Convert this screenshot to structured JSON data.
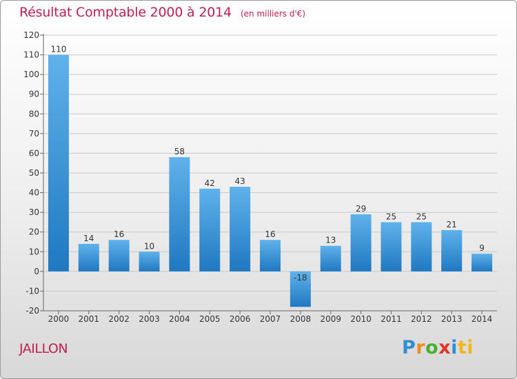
{
  "chart_data": {
    "type": "bar",
    "title": "Résultat Comptable 2000 à 2014",
    "subtitle": "(en milliers d'€)",
    "categories": [
      "2000",
      "2001",
      "2002",
      "2003",
      "2004",
      "2005",
      "2006",
      "2007",
      "2008",
      "2009",
      "2010",
      "2011",
      "2012",
      "2013",
      "2014"
    ],
    "values": [
      110,
      14,
      16,
      10,
      58,
      42,
      43,
      16,
      -18,
      13,
      29,
      25,
      25,
      21,
      9
    ],
    "value_labels": [
      "110",
      "14",
      "16",
      "10",
      "58",
      "42",
      "43",
      "16",
      "-18",
      "13",
      "29",
      "25",
      "25",
      "21",
      "9"
    ],
    "yticks": [
      "-20",
      "-10",
      "0",
      "10",
      "20",
      "30",
      "40",
      "50",
      "60",
      "70",
      "80",
      "90",
      "100",
      "110",
      "120"
    ],
    "ylim": [
      -20,
      120
    ],
    "grid": true,
    "xlabel": "",
    "ylabel": ""
  },
  "commune": "JAILLON",
  "logo": {
    "letters": [
      "P",
      "r",
      "o",
      "x",
      "i",
      "ti"
    ]
  },
  "colors": {
    "bar_top": "#5fb2ea",
    "bar_bottom": "#1f78c1",
    "title": "#c0204f",
    "grid": "#c8c8c8"
  }
}
